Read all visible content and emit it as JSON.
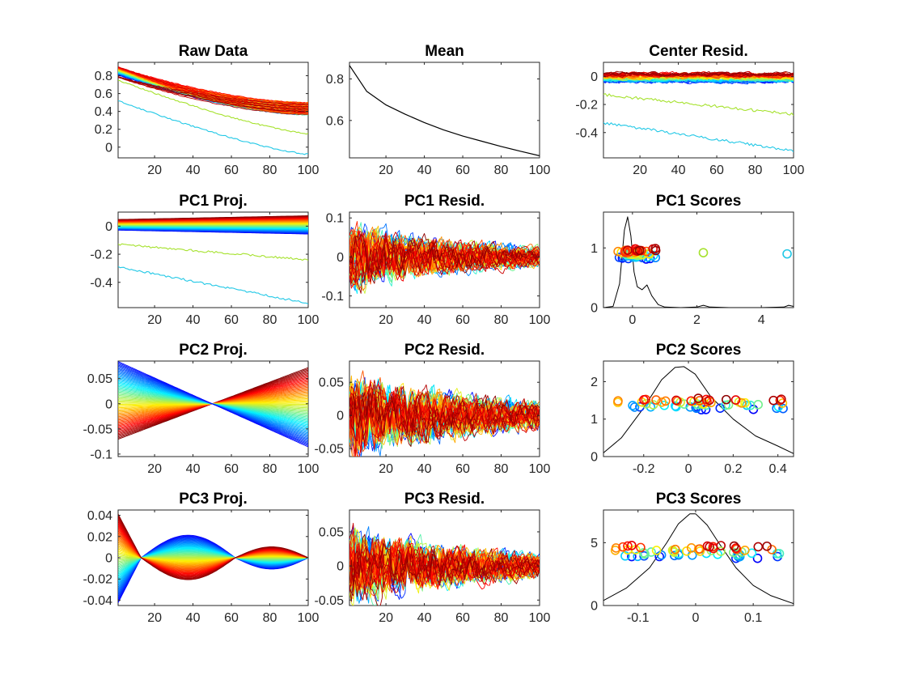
{
  "chart_data": [
    {
      "id": "raw",
      "type": "line",
      "title": "Raw Data",
      "xlim": [
        1,
        100
      ],
      "ylim": [
        -0.12,
        0.95
      ],
      "xticks": [
        20,
        40,
        60,
        80,
        100
      ],
      "xtick_labels": [
        "20",
        "40",
        "60",
        "80",
        "100"
      ],
      "yticks": [
        0,
        0.2,
        0.4,
        0.6,
        0.8
      ],
      "ytick_labels": [
        "0",
        "0.2",
        "0.4",
        "0.6",
        "0.8"
      ],
      "series_desc": "about 80 rainbow-colored curves decaying from ~0.85 at x=1 to ~0.42 at x=100; outliers: yellow-green from 0.75 to 0.15, cyan from 0.52 to -0.08",
      "outliers": [
        {
          "color": "#a6e22e",
          "start": 0.75,
          "end": 0.15
        },
        {
          "color": "#22c8e6",
          "start": 0.52,
          "end": -0.08
        }
      ]
    },
    {
      "id": "mean",
      "type": "line",
      "title": "Mean",
      "xlim": [
        1,
        100
      ],
      "ylim": [
        0.42,
        0.88
      ],
      "xticks": [
        20,
        40,
        60,
        80,
        100
      ],
      "xtick_labels": [
        "20",
        "40",
        "60",
        "80",
        "100"
      ],
      "yticks": [
        0.6,
        0.8
      ],
      "ytick_labels": [
        "0.6",
        "0.8"
      ],
      "x": [
        1,
        10,
        20,
        30,
        40,
        50,
        60,
        70,
        80,
        90,
        100
      ],
      "y": [
        0.865,
        0.74,
        0.675,
        0.63,
        0.59,
        0.555,
        0.525,
        0.5,
        0.475,
        0.452,
        0.43
      ],
      "color": "#000000"
    },
    {
      "id": "center",
      "type": "line",
      "title": "Center Resid.",
      "xlim": [
        1,
        100
      ],
      "ylim": [
        -0.58,
        0.1
      ],
      "xticks": [
        20,
        40,
        60,
        80,
        100
      ],
      "xtick_labels": [
        "20",
        "40",
        "60",
        "80",
        "100"
      ],
      "yticks": [
        -0.4,
        -0.2,
        0
      ],
      "ytick_labels": [
        "-0.4",
        "-0.2",
        "0"
      ],
      "outliers": [
        {
          "color": "#a6e22e",
          "start": -0.13,
          "end": -0.27
        },
        {
          "color": "#22c8e6",
          "start": -0.33,
          "end": -0.53
        }
      ]
    },
    {
      "id": "pc1proj",
      "type": "line",
      "title": "PC1 Proj.",
      "xlim": [
        1,
        100
      ],
      "ylim": [
        -0.58,
        0.1
      ],
      "xticks": [
        20,
        40,
        60,
        80,
        100
      ],
      "xtick_labels": [
        "20",
        "40",
        "60",
        "80",
        "100"
      ],
      "yticks": [
        -0.4,
        -0.2,
        0
      ],
      "ytick_labels": [
        "-0.4",
        "-0.2",
        "0"
      ],
      "outliers": [
        {
          "color": "#a6e22e",
          "start": -0.13,
          "end": -0.24
        },
        {
          "color": "#22c8e6",
          "start": -0.29,
          "end": -0.55
        }
      ]
    },
    {
      "id": "pc1resid",
      "type": "line",
      "title": "PC1 Resid.",
      "xlim": [
        1,
        100
      ],
      "ylim": [
        -0.13,
        0.115
      ],
      "xticks": [
        20,
        40,
        60,
        80,
        100
      ],
      "xtick_labels": [
        "20",
        "40",
        "60",
        "80",
        "100"
      ],
      "yticks": [
        -0.1,
        0,
        0.1
      ],
      "ytick_labels": [
        "-0.1",
        "0",
        "0.1"
      ]
    },
    {
      "id": "pc1scores",
      "type": "scatter",
      "title": "PC1 Scores",
      "xlim": [
        -0.9,
        5.0
      ],
      "ylim": [
        0,
        1.6
      ],
      "xticks": [
        0,
        2,
        4
      ],
      "xtick_labels": [
        "0",
        "2",
        "4"
      ],
      "yticks": [
        0,
        1
      ],
      "ytick_labels": [
        "0",
        "1"
      ],
      "density": {
        "x": [
          -0.9,
          -0.6,
          -0.4,
          -0.25,
          -0.15,
          -0.05,
          0.05,
          0.15,
          0.3,
          0.45,
          0.6,
          0.8,
          1.0,
          1.5,
          2.0,
          2.2,
          2.4,
          3.0,
          4.0,
          4.7,
          4.85,
          5.0
        ],
        "y": [
          0.0,
          0.02,
          0.4,
          1.3,
          1.52,
          1.2,
          0.6,
          0.35,
          0.3,
          0.38,
          0.2,
          0.05,
          0.01,
          0.0,
          0.01,
          0.04,
          0.01,
          0.0,
          0.0,
          0.01,
          0.04,
          0.02
        ]
      },
      "points_range": [
        -0.55,
        0.75
      ],
      "points_y": [
        0.83,
        0.98
      ],
      "outlier_points": [
        {
          "x": 2.2,
          "y": 0.92,
          "color": "#a6e22e"
        },
        {
          "x": 4.8,
          "y": 0.9,
          "color": "#22c8e6"
        }
      ]
    },
    {
      "id": "pc2proj",
      "type": "line",
      "title": "PC2 Proj.",
      "xlim": [
        1,
        100
      ],
      "ylim": [
        -0.105,
        0.085
      ],
      "xticks": [
        20,
        40,
        60,
        80,
        100
      ],
      "xtick_labels": [
        "20",
        "40",
        "60",
        "80",
        "100"
      ],
      "yticks": [
        -0.1,
        -0.05,
        0,
        0.05
      ],
      "ytick_labels": [
        "-0.1",
        "-0.05",
        "0",
        "0.05"
      ]
    },
    {
      "id": "pc2resid",
      "type": "line",
      "title": "PC2 Resid.",
      "xlim": [
        1,
        100
      ],
      "ylim": [
        -0.062,
        0.082
      ],
      "xticks": [
        20,
        40,
        60,
        80,
        100
      ],
      "xtick_labels": [
        "20",
        "40",
        "60",
        "80",
        "100"
      ],
      "yticks": [
        -0.05,
        0,
        0.05
      ],
      "ytick_labels": [
        "-0.05",
        "0",
        "0.05"
      ]
    },
    {
      "id": "pc2scores",
      "type": "scatter",
      "title": "PC2 Scores",
      "xlim": [
        -0.38,
        0.47
      ],
      "ylim": [
        0,
        2.55
      ],
      "xticks": [
        -0.2,
        0,
        0.2,
        0.4
      ],
      "xtick_labels": [
        "-0.2",
        "0",
        "0.2",
        "0.4"
      ],
      "yticks": [
        0,
        1,
        2
      ],
      "ytick_labels": [
        "0",
        "1",
        "2"
      ],
      "density": {
        "x": [
          -0.38,
          -0.3,
          -0.2,
          -0.12,
          -0.06,
          -0.02,
          0.03,
          0.1,
          0.2,
          0.3,
          0.4,
          0.47
        ],
        "y": [
          0.1,
          0.5,
          1.3,
          2.05,
          2.38,
          2.4,
          2.2,
          1.6,
          1.0,
          0.55,
          0.28,
          0.08
        ]
      },
      "points_range": [
        -0.35,
        0.45
      ],
      "points_y": [
        1.28,
        1.55
      ]
    },
    {
      "id": "pc3proj",
      "type": "line",
      "title": "PC3 Proj.",
      "xlim": [
        1,
        100
      ],
      "ylim": [
        -0.045,
        0.045
      ],
      "xticks": [
        20,
        40,
        60,
        80,
        100
      ],
      "xtick_labels": [
        "20",
        "40",
        "60",
        "80",
        "100"
      ],
      "yticks": [
        -0.04,
        -0.02,
        0,
        0.02,
        0.04
      ],
      "ytick_labels": [
        "-0.04",
        "-0.02",
        "0",
        "0.02",
        "0.04"
      ]
    },
    {
      "id": "pc3resid",
      "type": "line",
      "title": "PC3 Resid.",
      "xlim": [
        1,
        100
      ],
      "ylim": [
        -0.058,
        0.082
      ],
      "xticks": [
        20,
        40,
        60,
        80,
        100
      ],
      "xtick_labels": [
        "20",
        "40",
        "60",
        "80",
        "100"
      ],
      "yticks": [
        -0.05,
        0,
        0.05
      ],
      "ytick_labels": [
        "-0.05",
        "0",
        "0.05"
      ]
    },
    {
      "id": "pc3scores",
      "type": "scatter",
      "title": "PC3 Scores",
      "xlim": [
        -0.16,
        0.17
      ],
      "ylim": [
        0,
        7.6
      ],
      "xticks": [
        -0.1,
        0,
        0.1
      ],
      "xtick_labels": [
        "-0.1",
        "0",
        "0.1"
      ],
      "yticks": [
        0,
        5
      ],
      "ytick_labels": [
        "0",
        "5"
      ],
      "density": {
        "x": [
          -0.16,
          -0.12,
          -0.08,
          -0.05,
          -0.03,
          -0.01,
          0.0,
          0.02,
          0.04,
          0.07,
          0.1,
          0.13,
          0.17
        ],
        "y": [
          0.4,
          1.4,
          3.0,
          5.0,
          6.5,
          7.3,
          7.3,
          6.4,
          5.0,
          3.0,
          1.6,
          0.8,
          0.15
        ]
      },
      "points_range": [
        -0.14,
        0.15
      ],
      "points_y": [
        3.8,
        4.8
      ]
    }
  ]
}
